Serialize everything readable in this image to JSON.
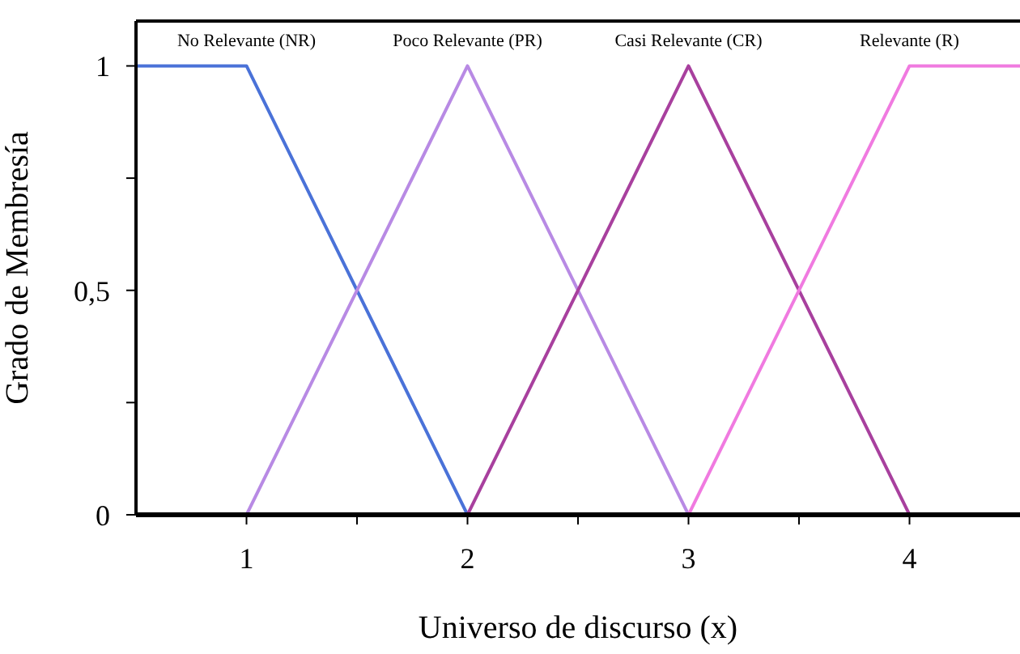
{
  "chart_data": {
    "type": "line",
    "xlabel": "Universo de discurso (x)",
    "ylabel": "Grado de Membresía",
    "xlim": [
      0.5,
      4.5
    ],
    "ylim": [
      0,
      1.1
    ],
    "xticks": [
      1,
      {
        "value": 1.5,
        "label": null
      },
      2,
      {
        "value": 2.5,
        "label": null
      },
      3,
      {
        "value": 3.5,
        "label": null
      },
      4
    ],
    "yticks": [
      0,
      {
        "value": 0.25,
        "label": null
      },
      {
        "value": 0.5,
        "label": "0,5"
      },
      {
        "value": 0.75,
        "label": null
      },
      1
    ],
    "grid": false,
    "legend": false,
    "marker": "none",
    "line_style": "solid",
    "series": [
      {
        "name": "No Relevante (NR)",
        "color": "#4a72d8",
        "x": [
          0.5,
          1,
          2
        ],
        "values": [
          1,
          1,
          0
        ]
      },
      {
        "name": "Poco Relevante (PR)",
        "color": "#b88ae4",
        "x": [
          1,
          2,
          3
        ],
        "values": [
          0,
          1,
          0
        ]
      },
      {
        "name": "Casi Relevante (CR)",
        "color": "#a8409e",
        "x": [
          2,
          3,
          4
        ],
        "values": [
          0,
          1,
          0
        ]
      },
      {
        "name": "Relevante (R)",
        "color": "#f07ae0",
        "x": [
          3,
          4,
          4.5
        ],
        "values": [
          0,
          1,
          1
        ]
      }
    ]
  }
}
